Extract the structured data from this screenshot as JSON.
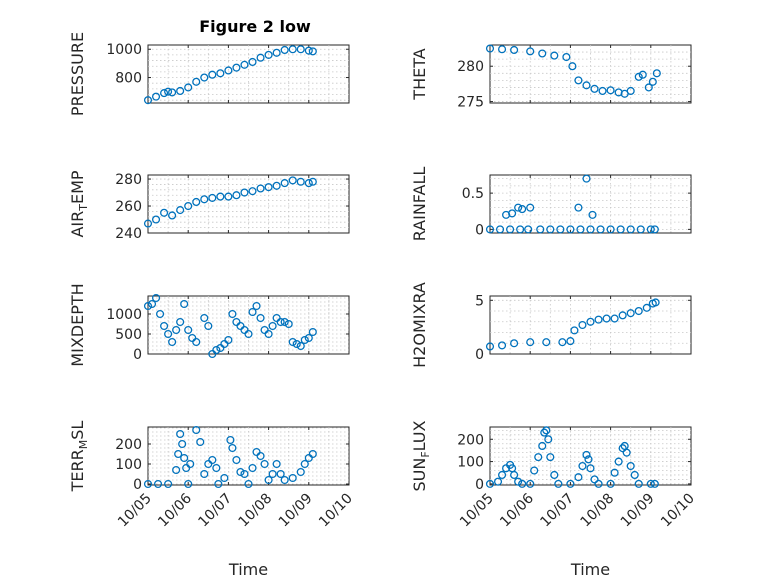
{
  "figure": {
    "title": "Figure 2 low"
  },
  "colors": {
    "marker": "#0072BD",
    "axis": "#262626",
    "grid": "#c8c8c8"
  },
  "chart_data": [
    {
      "type": "scatter",
      "ylabel": "PRESSURE",
      "xlim": [
        0,
        5
      ],
      "ylim": [
        620,
        1030
      ],
      "grid": true,
      "yticks": [
        800,
        1000
      ],
      "ytick_labels": [
        "800",
        "1000"
      ],
      "xy": [
        [
          0,
          640
        ],
        [
          0.2,
          665
        ],
        [
          0.4,
          690
        ],
        [
          0.5,
          700
        ],
        [
          0.6,
          695
        ],
        [
          0.8,
          705
        ],
        [
          1,
          730
        ],
        [
          1.2,
          770
        ],
        [
          1.4,
          800
        ],
        [
          1.6,
          820
        ],
        [
          1.8,
          830
        ],
        [
          2,
          850
        ],
        [
          2.2,
          870
        ],
        [
          2.4,
          890
        ],
        [
          2.6,
          910
        ],
        [
          2.8,
          940
        ],
        [
          3,
          960
        ],
        [
          3.2,
          975
        ],
        [
          3.4,
          995
        ],
        [
          3.6,
          1000
        ],
        [
          3.8,
          1000
        ],
        [
          4,
          990
        ],
        [
          4.1,
          985
        ]
      ]
    },
    {
      "type": "scatter",
      "ylabel": "THETA",
      "xlim": [
        0,
        5
      ],
      "ylim": [
        274.8,
        283
      ],
      "grid": true,
      "yticks": [
        275,
        280
      ],
      "ytick_labels": [
        "275",
        "280"
      ],
      "xy": [
        [
          0,
          282.5
        ],
        [
          0.3,
          282.4
        ],
        [
          0.6,
          282.3
        ],
        [
          1,
          282.1
        ],
        [
          1.3,
          281.8
        ],
        [
          1.6,
          281.5
        ],
        [
          1.9,
          281.3
        ],
        [
          2.05,
          280
        ],
        [
          2.2,
          278
        ],
        [
          2.4,
          277.3
        ],
        [
          2.6,
          276.8
        ],
        [
          2.8,
          276.5
        ],
        [
          3,
          276.6
        ],
        [
          3.2,
          276.3
        ],
        [
          3.35,
          276.1
        ],
        [
          3.5,
          276.5
        ],
        [
          3.7,
          278.5
        ],
        [
          3.8,
          278.8
        ],
        [
          3.95,
          277
        ],
        [
          4.05,
          277.8
        ],
        [
          4.15,
          279
        ]
      ]
    },
    {
      "type": "scatter",
      "ylabel": "AIR_TEMP",
      "xlim": [
        0,
        5
      ],
      "ylim": [
        240,
        283
      ],
      "grid": true,
      "yticks": [
        240,
        260,
        280
      ],
      "ytick_labels": [
        "240",
        "260",
        "280"
      ],
      "xy": [
        [
          0,
          247
        ],
        [
          0.2,
          250
        ],
        [
          0.4,
          255
        ],
        [
          0.6,
          253
        ],
        [
          0.8,
          257
        ],
        [
          1,
          260
        ],
        [
          1.2,
          263
        ],
        [
          1.4,
          265
        ],
        [
          1.6,
          266
        ],
        [
          1.8,
          267
        ],
        [
          2,
          267
        ],
        [
          2.2,
          268
        ],
        [
          2.4,
          270
        ],
        [
          2.6,
          271
        ],
        [
          2.8,
          273
        ],
        [
          3,
          274
        ],
        [
          3.2,
          275
        ],
        [
          3.4,
          277
        ],
        [
          3.6,
          279
        ],
        [
          3.8,
          278
        ],
        [
          4,
          277
        ],
        [
          4.1,
          278
        ]
      ]
    },
    {
      "type": "scatter",
      "ylabel": "RAINFALL",
      "xlim": [
        0,
        5
      ],
      "ylim": [
        -0.05,
        0.75
      ],
      "grid": true,
      "yticks": [
        0,
        0.5
      ],
      "ytick_labels": [
        "0",
        "0.5"
      ],
      "xy": [
        [
          0,
          0
        ],
        [
          0.25,
          0
        ],
        [
          0.4,
          0.2
        ],
        [
          0.5,
          0
        ],
        [
          0.55,
          0.22
        ],
        [
          0.7,
          0.3
        ],
        [
          0.75,
          0
        ],
        [
          0.8,
          0.28
        ],
        [
          0.95,
          0
        ],
        [
          1.0,
          0.3
        ],
        [
          1.25,
          0
        ],
        [
          1.5,
          0
        ],
        [
          1.75,
          0
        ],
        [
          2,
          0
        ],
        [
          2.2,
          0.3
        ],
        [
          2.25,
          0
        ],
        [
          2.4,
          0.7
        ],
        [
          2.5,
          0
        ],
        [
          2.55,
          0.2
        ],
        [
          2.75,
          0
        ],
        [
          3,
          0
        ],
        [
          3.25,
          0
        ],
        [
          3.5,
          0
        ],
        [
          3.75,
          0
        ],
        [
          4,
          0
        ],
        [
          4.1,
          0
        ]
      ]
    },
    {
      "type": "scatter",
      "ylabel": "MIXDEPTH",
      "xlim": [
        0,
        5
      ],
      "ylim": [
        0,
        1450
      ],
      "grid": true,
      "yticks": [
        0,
        500,
        1000
      ],
      "ytick_labels": [
        "0",
        "500",
        "1000"
      ],
      "xy": [
        [
          0,
          1200
        ],
        [
          0.1,
          1250
        ],
        [
          0.2,
          1400
        ],
        [
          0.3,
          1000
        ],
        [
          0.4,
          700
        ],
        [
          0.5,
          500
        ],
        [
          0.6,
          300
        ],
        [
          0.7,
          600
        ],
        [
          0.8,
          800
        ],
        [
          0.9,
          1250
        ],
        [
          1,
          600
        ],
        [
          1.1,
          400
        ],
        [
          1.2,
          300
        ],
        [
          1.4,
          900
        ],
        [
          1.5,
          700
        ],
        [
          1.6,
          0
        ],
        [
          1.7,
          100
        ],
        [
          1.8,
          150
        ],
        [
          1.9,
          250
        ],
        [
          2,
          350
        ],
        [
          2.1,
          1000
        ],
        [
          2.2,
          800
        ],
        [
          2.3,
          700
        ],
        [
          2.4,
          600
        ],
        [
          2.5,
          500
        ],
        [
          2.6,
          1050
        ],
        [
          2.7,
          1200
        ],
        [
          2.8,
          900
        ],
        [
          2.9,
          600
        ],
        [
          3,
          500
        ],
        [
          3.1,
          700
        ],
        [
          3.2,
          900
        ],
        [
          3.3,
          800
        ],
        [
          3.4,
          800
        ],
        [
          3.5,
          750
        ],
        [
          3.6,
          300
        ],
        [
          3.7,
          250
        ],
        [
          3.8,
          200
        ],
        [
          3.9,
          350
        ],
        [
          4,
          400
        ],
        [
          4.1,
          550
        ]
      ]
    },
    {
      "type": "scatter",
      "ylabel": "H2OMIXRA",
      "xlim": [
        0,
        5
      ],
      "ylim": [
        0,
        5.4
      ],
      "grid": true,
      "yticks": [
        0,
        5
      ],
      "ytick_labels": [
        "0",
        "5"
      ],
      "xy": [
        [
          0,
          0.7
        ],
        [
          0.3,
          0.8
        ],
        [
          0.6,
          1.0
        ],
        [
          1,
          1.1
        ],
        [
          1.4,
          1.1
        ],
        [
          1.8,
          1.1
        ],
        [
          2.0,
          1.2
        ],
        [
          2.1,
          2.2
        ],
        [
          2.3,
          2.7
        ],
        [
          2.5,
          3.0
        ],
        [
          2.7,
          3.2
        ],
        [
          2.9,
          3.3
        ],
        [
          3.1,
          3.3
        ],
        [
          3.3,
          3.6
        ],
        [
          3.5,
          3.8
        ],
        [
          3.7,
          4.0
        ],
        [
          3.9,
          4.3
        ],
        [
          4.05,
          4.7
        ],
        [
          4.12,
          4.8
        ]
      ]
    },
    {
      "type": "scatter",
      "ylabel": "TERR_MSL",
      "xlim": [
        0,
        5
      ],
      "ylim": [
        -5,
        285
      ],
      "grid": true,
      "yticks": [
        0,
        100,
        200
      ],
      "ytick_labels": [
        "0",
        "100",
        "200"
      ],
      "xticks": [
        0,
        1,
        2,
        3,
        4,
        5
      ],
      "xtick_labels": [
        "10/05",
        "10/06",
        "10/07",
        "10/08",
        "10/09",
        "10/10"
      ],
      "xlabel": "Time",
      "xy": [
        [
          0,
          0
        ],
        [
          0.25,
          0
        ],
        [
          0.5,
          0
        ],
        [
          0.7,
          70
        ],
        [
          0.75,
          150
        ],
        [
          0.8,
          250
        ],
        [
          0.85,
          200
        ],
        [
          0.9,
          130
        ],
        [
          0.95,
          80
        ],
        [
          1,
          0
        ],
        [
          1.05,
          100
        ],
        [
          1.2,
          270
        ],
        [
          1.3,
          210
        ],
        [
          1.4,
          50
        ],
        [
          1.5,
          100
        ],
        [
          1.6,
          120
        ],
        [
          1.7,
          80
        ],
        [
          1.75,
          0
        ],
        [
          1.9,
          30
        ],
        [
          2.05,
          220
        ],
        [
          2.1,
          180
        ],
        [
          2.2,
          120
        ],
        [
          2.3,
          60
        ],
        [
          2.4,
          50
        ],
        [
          2.5,
          0
        ],
        [
          2.6,
          80
        ],
        [
          2.7,
          160
        ],
        [
          2.8,
          140
        ],
        [
          2.9,
          100
        ],
        [
          3,
          20
        ],
        [
          3.1,
          50
        ],
        [
          3.2,
          100
        ],
        [
          3.3,
          50
        ],
        [
          3.4,
          20
        ],
        [
          3.6,
          30
        ],
        [
          3.8,
          60
        ],
        [
          3.9,
          100
        ],
        [
          4,
          130
        ],
        [
          4.1,
          150
        ]
      ]
    },
    {
      "type": "scatter",
      "ylabel": "SUN_FLUX",
      "xlim": [
        0,
        5
      ],
      "ylim": [
        -5,
        255
      ],
      "grid": true,
      "yticks": [
        0,
        100,
        200
      ],
      "ytick_labels": [
        "0",
        "100",
        "200"
      ],
      "xticks": [
        0,
        1,
        2,
        3,
        4,
        5
      ],
      "xtick_labels": [
        "10/05",
        "10/06",
        "10/07",
        "10/08",
        "10/09",
        "10/10"
      ],
      "xlabel": "Time",
      "xy": [
        [
          0,
          0
        ],
        [
          0.2,
          10
        ],
        [
          0.3,
          40
        ],
        [
          0.4,
          70
        ],
        [
          0.5,
          85
        ],
        [
          0.55,
          70
        ],
        [
          0.6,
          40
        ],
        [
          0.7,
          10
        ],
        [
          0.8,
          0
        ],
        [
          1,
          0
        ],
        [
          1.1,
          60
        ],
        [
          1.2,
          120
        ],
        [
          1.3,
          170
        ],
        [
          1.35,
          230
        ],
        [
          1.4,
          240
        ],
        [
          1.45,
          200
        ],
        [
          1.5,
          120
        ],
        [
          1.6,
          40
        ],
        [
          1.7,
          0
        ],
        [
          2,
          0
        ],
        [
          2.2,
          30
        ],
        [
          2.3,
          80
        ],
        [
          2.4,
          130
        ],
        [
          2.45,
          110
        ],
        [
          2.5,
          70
        ],
        [
          2.6,
          20
        ],
        [
          2.7,
          0
        ],
        [
          3,
          0
        ],
        [
          3.1,
          50
        ],
        [
          3.2,
          100
        ],
        [
          3.3,
          160
        ],
        [
          3.35,
          170
        ],
        [
          3.4,
          140
        ],
        [
          3.5,
          80
        ],
        [
          3.6,
          40
        ],
        [
          3.7,
          0
        ],
        [
          4,
          0
        ],
        [
          4.1,
          0
        ]
      ]
    }
  ]
}
